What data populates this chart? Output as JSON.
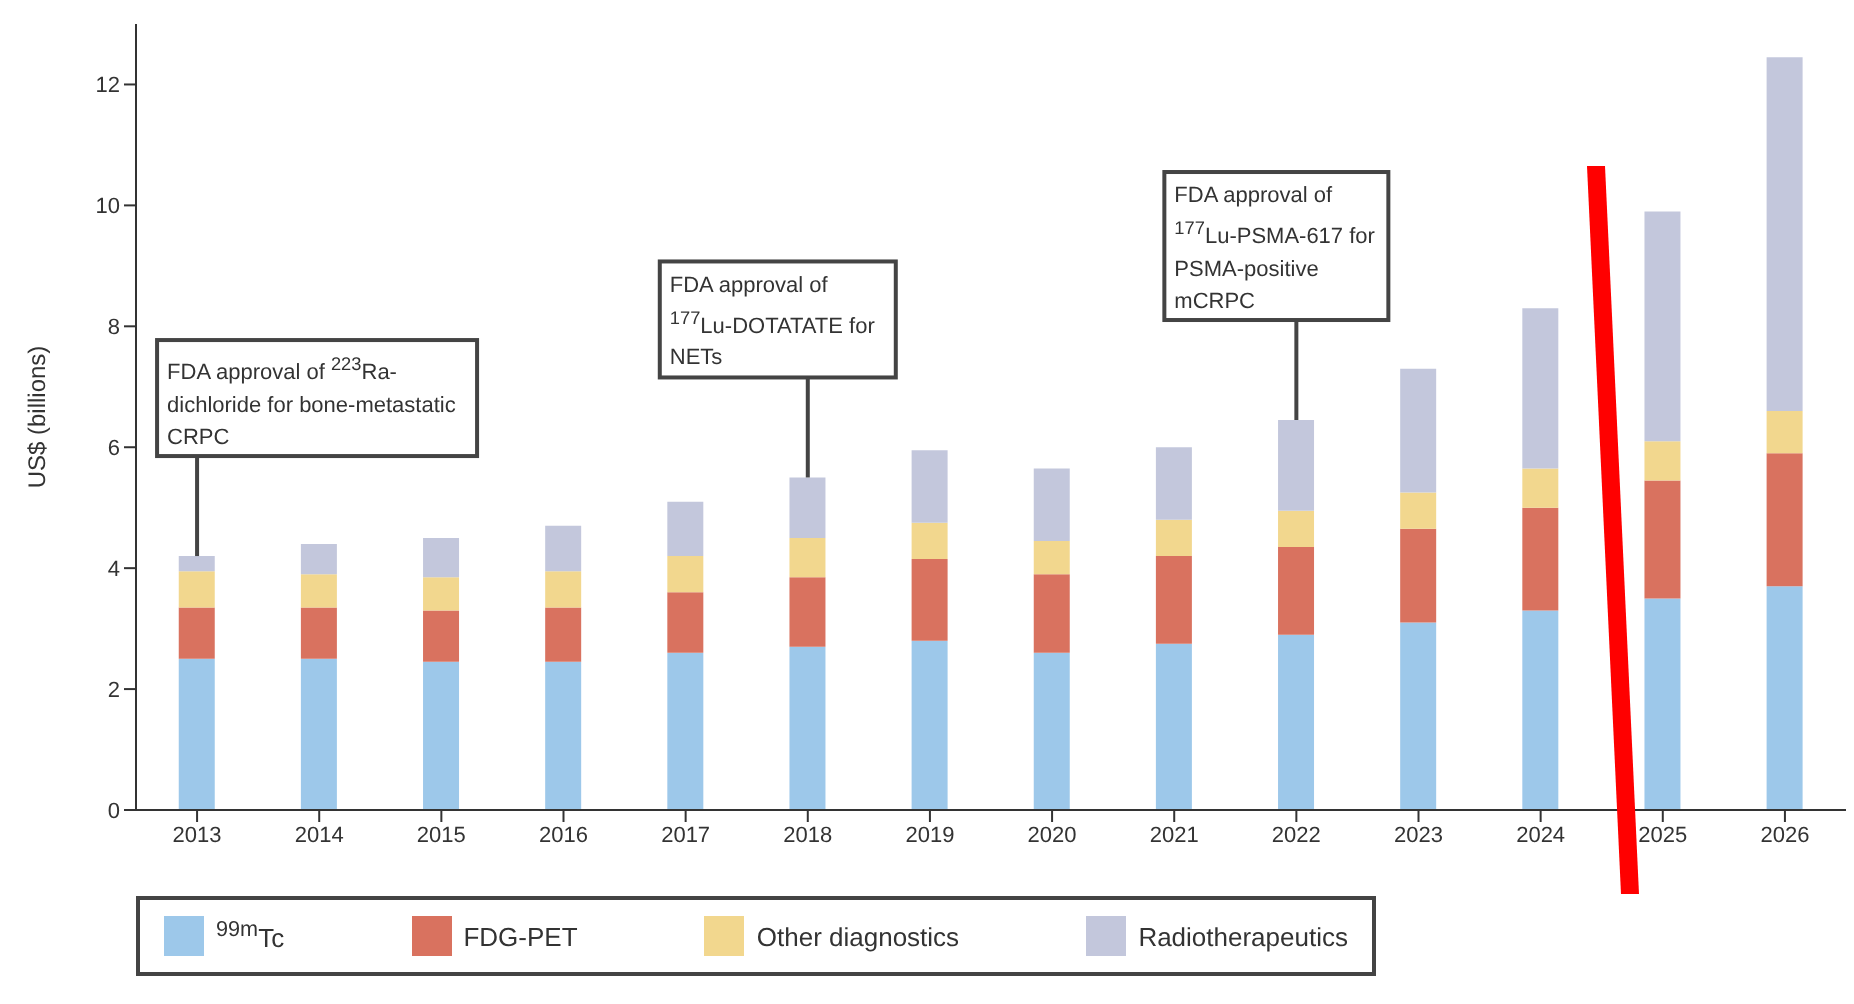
{
  "chart_data": {
    "type": "bar",
    "stacked": true,
    "ylabel": "US$ (billions)",
    "categories": [
      "2013",
      "2014",
      "2015",
      "2016",
      "2017",
      "2018",
      "2019",
      "2020",
      "2021",
      "2022",
      "2023",
      "2024",
      "2025",
      "2026"
    ],
    "series": [
      {
        "name": "$^{99m}$Tc",
        "color": "#9dc8ea",
        "values": [
          2.5,
          2.5,
          2.45,
          2.45,
          2.6,
          2.7,
          2.8,
          2.6,
          2.75,
          2.9,
          3.1,
          3.3,
          3.5,
          3.7
        ]
      },
      {
        "name": "FDG-PET",
        "color": "#d9725f",
        "values": [
          0.85,
          0.85,
          0.85,
          0.9,
          1.0,
          1.15,
          1.35,
          1.3,
          1.45,
          1.45,
          1.55,
          1.7,
          1.95,
          2.2
        ]
      },
      {
        "name": "Other diagnostics",
        "color": "#f2d78e",
        "values": [
          0.6,
          0.55,
          0.55,
          0.6,
          0.6,
          0.65,
          0.6,
          0.55,
          0.6,
          0.6,
          0.6,
          0.65,
          0.65,
          0.7
        ]
      },
      {
        "name": "Radiotherapeutics",
        "color": "#c3c7dc",
        "values": [
          0.25,
          0.5,
          0.65,
          0.75,
          0.9,
          1.0,
          1.2,
          1.2,
          1.2,
          1.5,
          2.05,
          2.65,
          3.8,
          5.85
        ]
      }
    ],
    "ylim": [
      0,
      13
    ],
    "yticks": [
      0,
      2,
      4,
      6,
      8,
      10,
      12
    ],
    "grid": false,
    "legend": "bottom",
    "annotations": [
      {
        "text": "FDA approval of $^{223}$Ra-dichloride for bone-metastatic CRPC",
        "x": "2013",
        "y": 4.2
      },
      {
        "text": "FDA approval of $^{177}$Lu-DOTATATE for NETs",
        "x": "2018",
        "y": 5.5
      },
      {
        "text": "FDA approval of $^{177}$Lu-PSMA-617 for PSMA-positive mCRPC",
        "x": "2022",
        "y": 6.45
      }
    ]
  }
}
